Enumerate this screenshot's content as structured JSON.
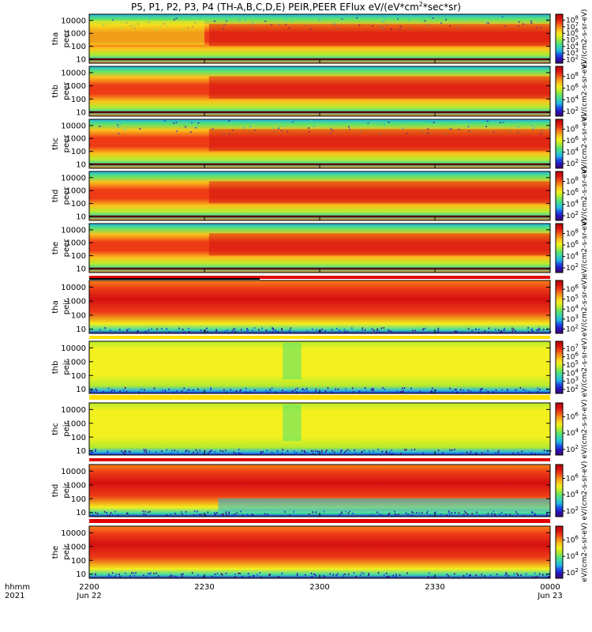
{
  "title": "P5, P1, P2, P3, P4 (TH-A,B,C,D,E) PEIR,PEER EFlux eV/(eV*cm2*sec*sr)",
  "title_parts": {
    "pre": "P5, P1, P2, P3, P4 (TH-A,B,C,D,E) PEIR,PEER EFlux eV/(eV*cm",
    "sup": "2",
    "post": "*sec*sr)"
  },
  "colors": {
    "scale": [
      "#3b0a6e",
      "#2a10b8",
      "#1a49e6",
      "#22b4e6",
      "#36d6b0",
      "#5ee46a",
      "#b6ec2e",
      "#f2f01e",
      "#fcc21c",
      "#f8821a",
      "#ee3b16",
      "#d41010",
      "#b00808"
    ],
    "separator": "#e00000",
    "flag": "#ffe000"
  },
  "x_axis": {
    "row1_label": "hhmm",
    "row2_label": "2021",
    "ticks": [
      {
        "time": "2200",
        "date": "Jun 22"
      },
      {
        "time": "2230",
        "date": ""
      },
      {
        "time": "2300",
        "date": ""
      },
      {
        "time": "2330",
        "date": ""
      },
      {
        "time": "0000",
        "date": "Jun 23"
      }
    ]
  },
  "chart_data": {
    "type": "heatmap",
    "title": "P5, P1, P2, P3, P4 (TH-A,B,C,D,E) PEIR,PEER EFlux eV/(eV*cm2*sec*sr)",
    "x_range": [
      "2021-06-22 22:00",
      "2021-06-23 00:00"
    ],
    "y_scale": "log",
    "y_range": [
      5,
      30000
    ],
    "y_ticks": [
      "10",
      "100",
      "1000",
      "10000"
    ],
    "colorbar_unit": "eV/(cm2-s-sr-eV)",
    "panels": [
      {
        "label1": "tha",
        "label2": "peer",
        "cbar_ticks": [
          "10",
          "10",
          "10",
          "10",
          "10",
          "10",
          "10"
        ],
        "cbar_exp": [
          "2",
          "3",
          "4",
          "5",
          "6",
          "7",
          "8"
        ]
      },
      {
        "label1": "thb",
        "label2": "peer",
        "cbar_ticks": [
          "10",
          "10",
          "10",
          "10"
        ],
        "cbar_exp": [
          "2",
          "4",
          "6",
          "8"
        ]
      },
      {
        "label1": "thc",
        "label2": "peer",
        "cbar_ticks": [
          "10",
          "10",
          "10",
          "10"
        ],
        "cbar_exp": [
          "2",
          "4",
          "6",
          "8"
        ]
      },
      {
        "label1": "thd",
        "label2": "peer",
        "cbar_ticks": [
          "10",
          "10",
          "10",
          "10"
        ],
        "cbar_exp": [
          "2",
          "4",
          "6",
          "8"
        ]
      },
      {
        "label1": "the",
        "label2": "peer",
        "cbar_ticks": [
          "10",
          "10",
          "10",
          "10"
        ],
        "cbar_exp": [
          "2",
          "4",
          "6",
          "8"
        ]
      },
      {
        "label1": "tha",
        "label2": "peir",
        "cbar_ticks": [
          "10",
          "10",
          "10",
          "10",
          "10"
        ],
        "cbar_exp": [
          "2",
          "3",
          "4",
          "5",
          "6"
        ]
      },
      {
        "label1": "thb",
        "label2": "peir",
        "cbar_ticks": [
          "10",
          "10",
          "10",
          "10",
          "10",
          "10"
        ],
        "cbar_exp": [
          "2",
          "3",
          "4",
          "5",
          "6",
          "7"
        ]
      },
      {
        "label1": "thc",
        "label2": "peir",
        "cbar_ticks": [
          "10",
          "10",
          "10"
        ],
        "cbar_exp": [
          "2",
          "4",
          "6"
        ]
      },
      {
        "label1": "thd",
        "label2": "peir",
        "cbar_ticks": [
          "10",
          "10",
          "10"
        ],
        "cbar_exp": [
          "2",
          "4",
          "6"
        ]
      },
      {
        "label1": "the",
        "label2": "peir",
        "cbar_ticks": [
          "10",
          "10",
          "10"
        ],
        "cbar_exp": [
          "2",
          "4",
          "6"
        ]
      }
    ]
  }
}
